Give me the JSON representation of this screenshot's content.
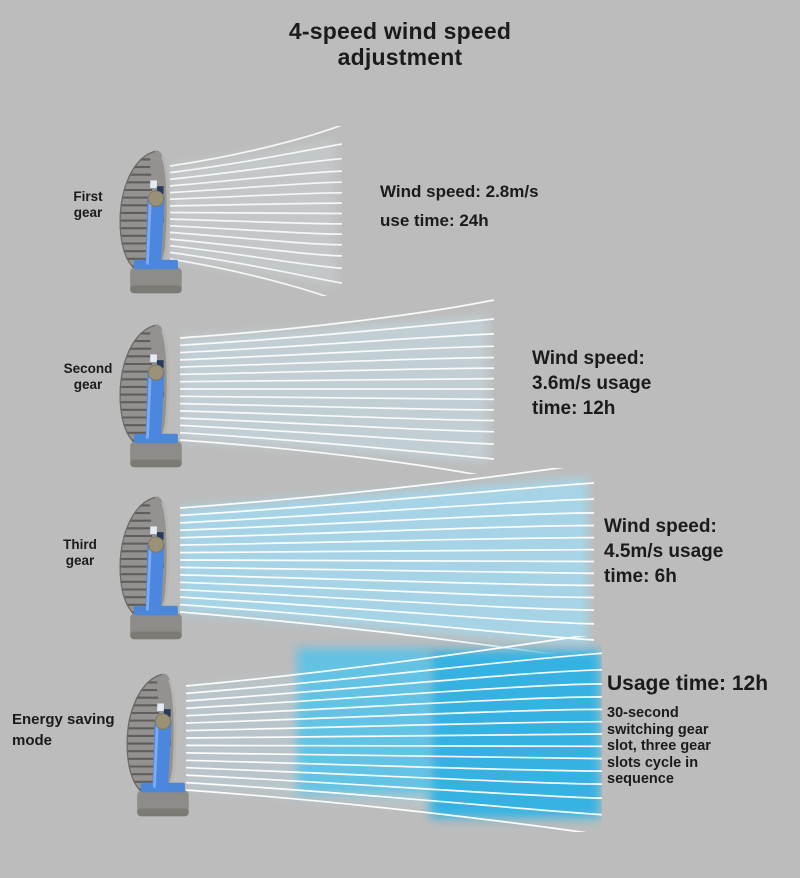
{
  "title": "4-speed wind speed\nadjustment",
  "colors": {
    "background": "#bcbcbc",
    "text": "#1b1b1b",
    "fan_blue": "#4b87de",
    "stream_line": "#ffffff"
  },
  "modes": [
    {
      "id": "first-gear",
      "label": "First\ngear",
      "wind_speed": "2.8m/s",
      "usage_time": "24h",
      "description": "Wind speed: 2.8m/s\nuse time: 24h",
      "stream": {
        "line_count": 15,
        "line_color": "#ffffff",
        "line_opacity": 0.85,
        "tint": "#cfd9db",
        "tint_opacity": 0.4
      }
    },
    {
      "id": "second-gear",
      "label": "Second\ngear",
      "wind_speed": "3.6m/s",
      "usage_time": "12h",
      "description": "Wind speed:\n3.6m/s usage\ntime: 12h",
      "stream": {
        "line_count": 15,
        "line_color": "#ffffff",
        "line_opacity": 0.9,
        "tint": "#c6dee7",
        "tint_opacity": 0.55
      }
    },
    {
      "id": "third-gear",
      "label": "Third\ngear",
      "wind_speed": "4.5m/s",
      "usage_time": "6h",
      "description": "Wind speed:\n4.5m/s usage\ntime: 6h",
      "stream": {
        "line_count": 15,
        "line_color": "#ffffff",
        "line_opacity": 0.95,
        "tint": "#a3d9ee",
        "tint_opacity": 0.85
      }
    },
    {
      "id": "energy-saving-mode",
      "label": "Energy saving\nmode",
      "usage_time": "12h",
      "heading": "Usage time: 12h",
      "description": "30-second\nswitching gear\nslot, three gear\nslots cycle in\nsequence",
      "stream": {
        "line_count": 15,
        "line_color": "#ffffff",
        "line_opacity": 0.95,
        "tint": "#b3dcea",
        "tint_opacity": 0.3,
        "segments": [
          {
            "color": "#54c3ea",
            "opacity": 0.85
          },
          {
            "color": "#2fb2e4",
            "opacity": 0.95
          }
        ]
      }
    }
  ]
}
